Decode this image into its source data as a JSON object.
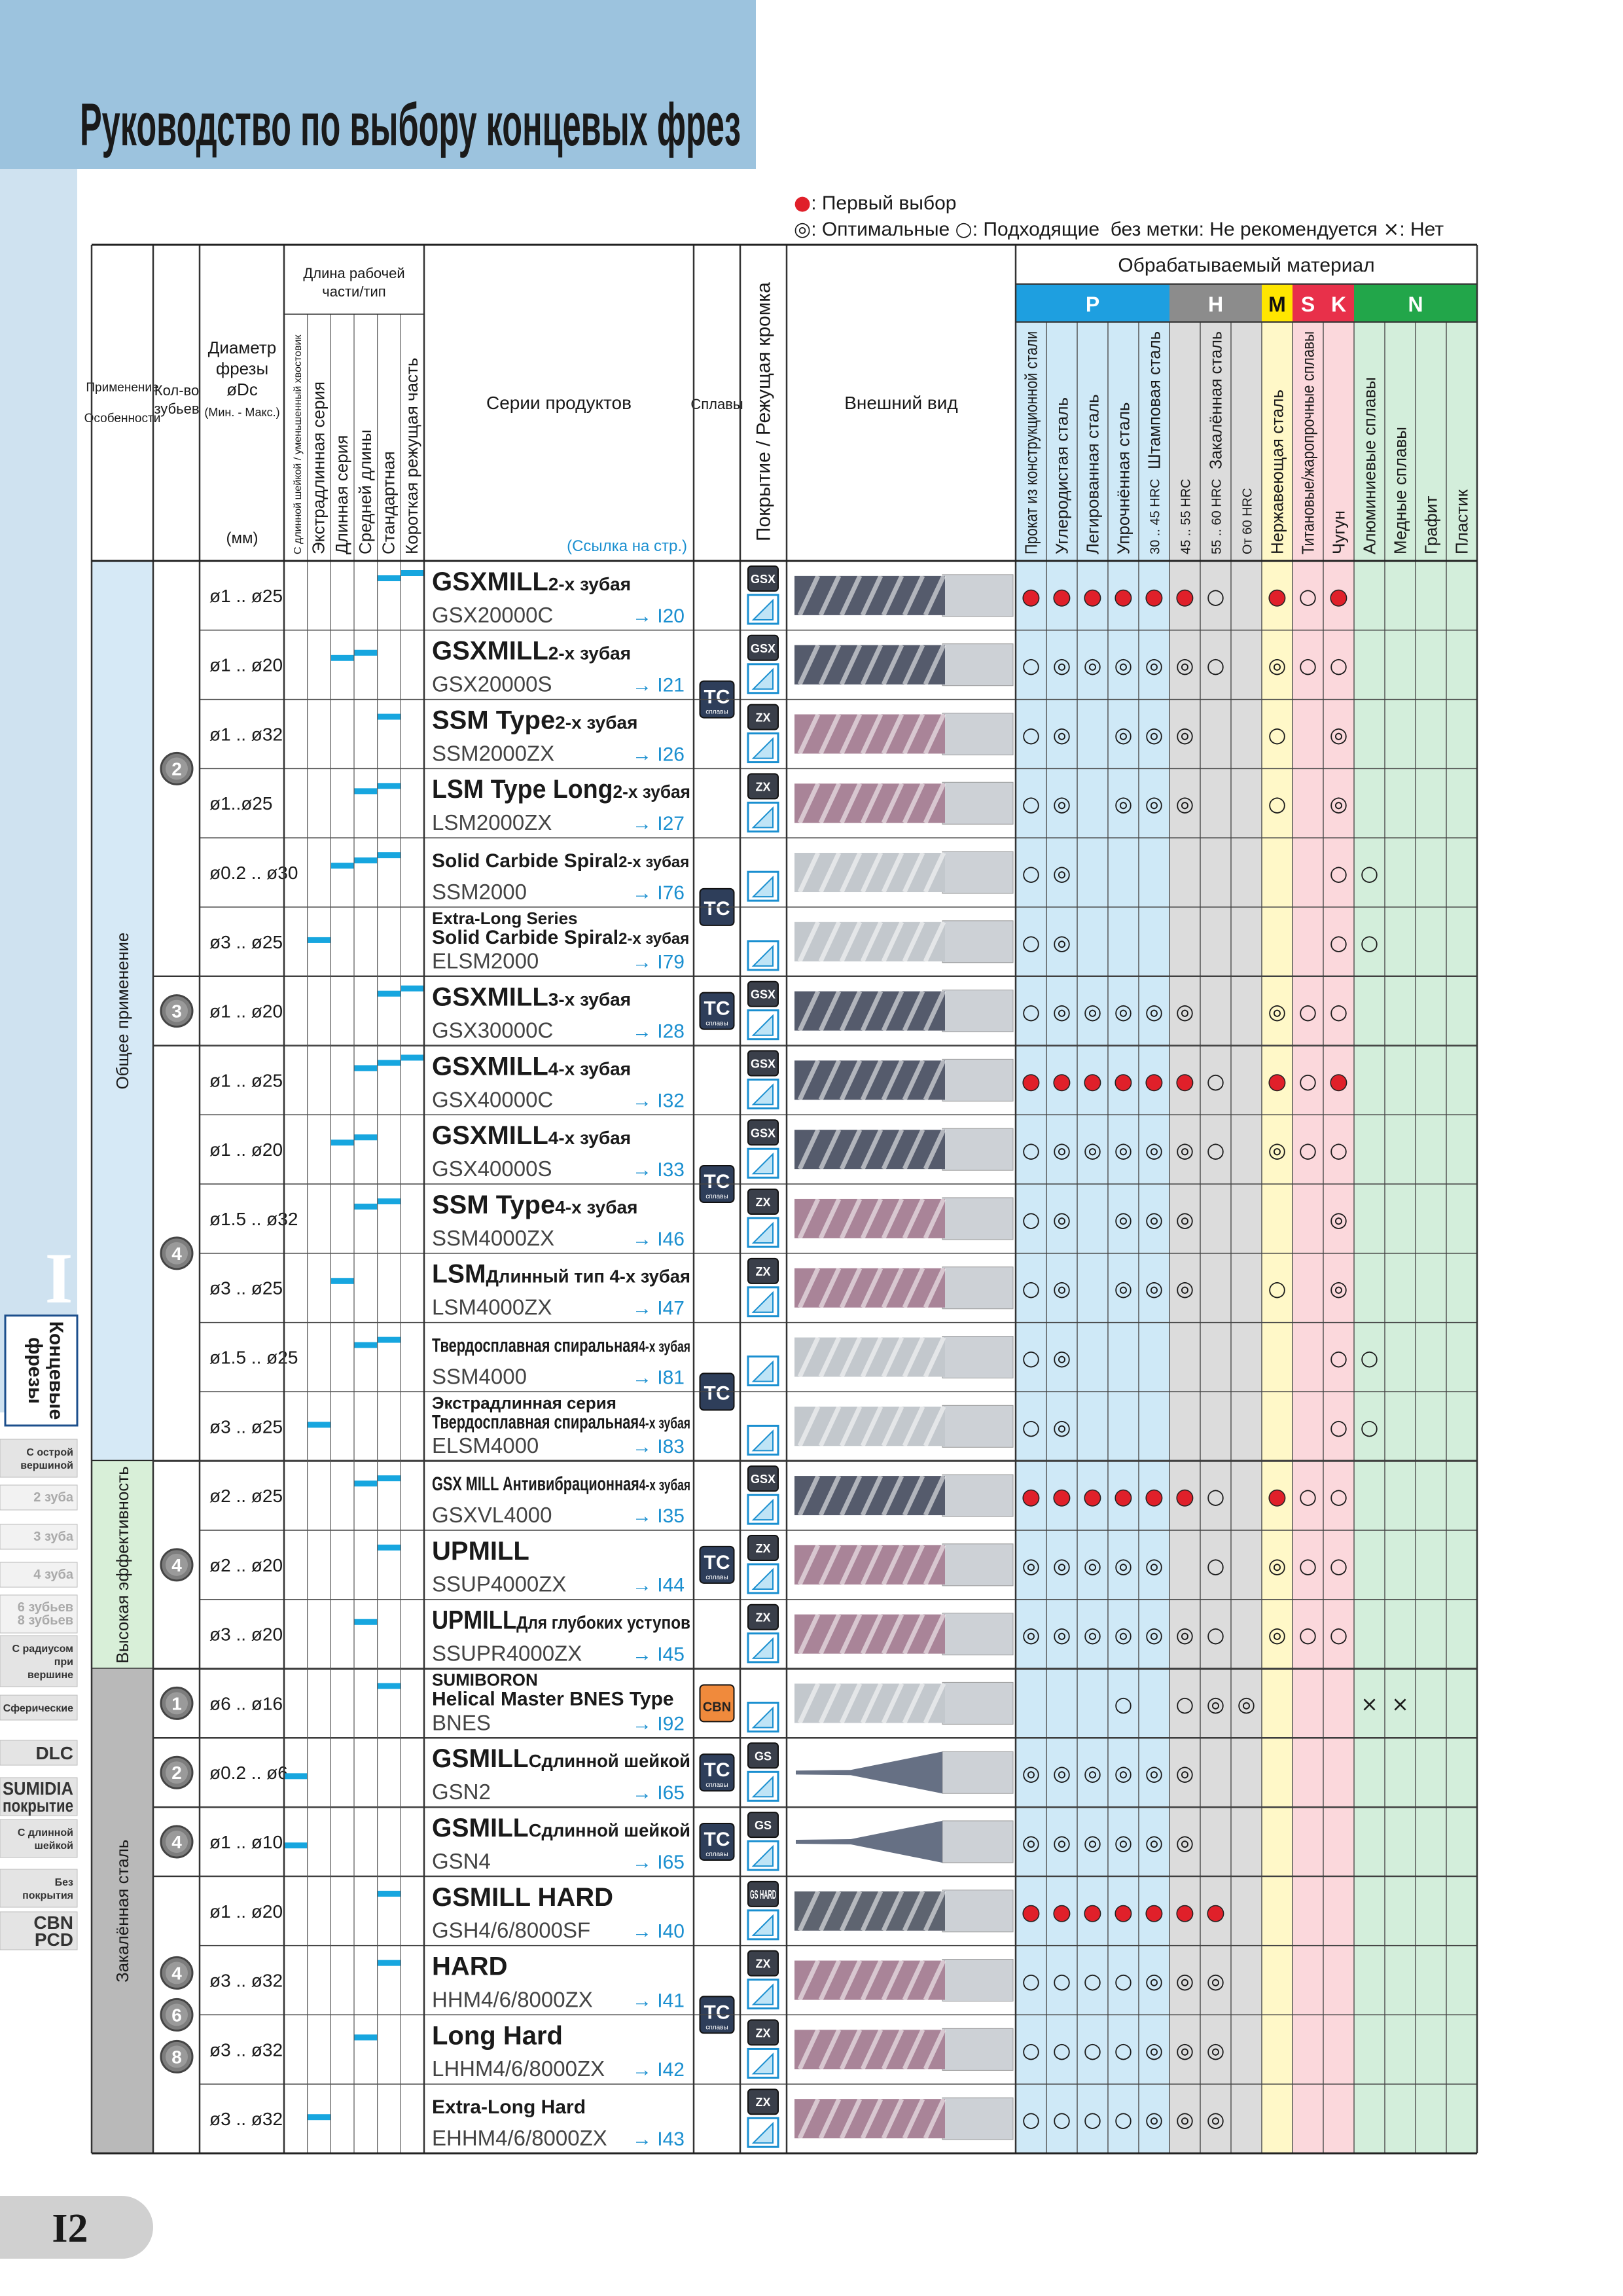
{
  "header": {
    "title": "Руководство по выбору концевых фрез"
  },
  "legend": [
    [
      {
        "symbol": "●",
        "text": ": Первый выбор"
      }
    ],
    [
      {
        "symbol": "◎",
        "text": ": Оптимальные "
      },
      {
        "symbol": "○",
        "text": ": Подходящие  без метки: Не рекомендуется "
      },
      {
        "symbol": "×",
        "text": ": Нет"
      }
    ]
  ],
  "table": {
    "head": {
      "application": "Применение",
      "features": "Особенности",
      "teeth": [
        "Кол-во",
        "зубьев"
      ],
      "diameter": [
        "Диаметр",
        "фрезы",
        "øDc",
        "(Мин. - Макс.)"
      ],
      "units": "(мм)",
      "length": [
        "Длина рабочей",
        "части/тип"
      ],
      "length_columns": [
        "С длинной шейкой / уменьшенный хвостовик",
        "Экстрадлинная серия",
        "Длинная серия",
        "Средней длины",
        "Стандартная",
        "Короткая режущая часть"
      ],
      "series": "Серии продуктов",
      "reference": "(Ссылка на стр.)",
      "alloys": "Сплавы",
      "coating": "Покрытие / Режущая кромка",
      "appearance": "Внешний вид",
      "materials": "Обрабатываемый материал"
    },
    "material_groups": [
      {
        "label": "P",
        "color": "#1e9fe0",
        "background": "#cfe9f7",
        "columns": [
          {
            "label": "Прокат из конструкционной стали"
          },
          {
            "label": "Углеродистая сталь"
          },
          {
            "label": "Легированная сталь"
          },
          {
            "label": "Упрочнённая сталь"
          },
          {
            "label": "Штамповая сталь",
            "hrc": "30 .. 45 HRC"
          }
        ]
      },
      {
        "label": "H",
        "color": "#8c8c8c",
        "background": "#dcdcdc",
        "caption": "Закалённая сталь",
        "columns": [
          {
            "hrc": "45 .. 55 HRC"
          },
          {
            "hrc": "55 .. 60 HRC"
          },
          {
            "hrc": "От 60 HRC"
          }
        ]
      },
      {
        "label": "M",
        "color": "#ffe600",
        "background": "#fff8c8",
        "columns": [
          {
            "label": "Нержавеющая сталь"
          }
        ]
      },
      {
        "label": "S",
        "color": "#e8304a",
        "background": "#fbd8dc",
        "columns": [
          {
            "label": "Титановые/жаропрочные сплавы"
          }
        ]
      },
      {
        "label": "K",
        "color": "#e8304a",
        "background": "#fbd8dc",
        "columns": [
          {
            "label": "Чугун"
          }
        ]
      },
      {
        "label": "N",
        "color": "#22a64a",
        "background": "#d3eedb",
        "columns": [
          {
            "label": "Алюминиевые сплавы"
          },
          {
            "label": "Медные сплавы"
          },
          {
            "label": "Графит"
          },
          {
            "label": "Пластик"
          }
        ]
      }
    ],
    "applications": [
      "Общее применение",
      "Высокая эффективность",
      "Закалённая сталь"
    ],
    "teeth": [
      [
        2
      ],
      [
        3
      ],
      [
        4
      ],
      [
        4
      ],
      [
        1
      ],
      [
        2
      ],
      [
        4
      ],
      [
        4,
        6,
        8
      ]
    ],
    "alloys": [
      {
        "label": "TC",
        "sub": "сплавы"
      },
      {
        "label": "TC"
      },
      {
        "label": "TC",
        "sub": "сплавы"
      },
      {
        "label": "TC",
        "sub": "сплавы"
      },
      {
        "label": "TC"
      },
      {
        "label": "TC",
        "sub": "сплавы"
      },
      {
        "label": "CBN"
      },
      {
        "label": "TC",
        "sub": "сплавы"
      },
      {
        "label": "TC",
        "sub": "сплавы"
      },
      {
        "label": "TC",
        "sub": "сплавы"
      }
    ],
    "rows": [
      {
        "diameter": "ø1 .. ø25",
        "name": "GSXMILL",
        "sub": "2-х зубая",
        "code": "GSX20000C",
        "ref": "→ I20",
        "coating": "GSX",
        "ratings": [
          "●",
          "●",
          "●",
          "●",
          "●",
          "●",
          "○",
          null,
          "●",
          "○",
          "●",
          null,
          null,
          null,
          null
        ]
      },
      {
        "diameter": "ø1 .. ø20",
        "name": "GSXMILL",
        "sub": "2-х зубая",
        "code": "GSX20000S",
        "ref": "→ I21",
        "coating": "GSX",
        "ratings": [
          "○",
          "◎",
          "◎",
          "◎",
          "◎",
          "◎",
          "○",
          null,
          "◎",
          "○",
          "○",
          null,
          null,
          null,
          null
        ]
      },
      {
        "diameter": "ø1 .. ø32",
        "name": "SSM Type",
        "sub": "2-х зубая",
        "code": "SSM2000ZX",
        "ref": "→ I26",
        "coating": "ZX",
        "ratings": [
          "○",
          "◎",
          null,
          "◎",
          "◎",
          "◎",
          null,
          null,
          "○",
          null,
          "◎",
          null,
          null,
          null,
          null
        ]
      },
      {
        "diameter": "ø1..ø25",
        "name": "LSM Type Long",
        "sub": "2-х зубая",
        "code": "LSM2000ZX",
        "ref": "→ I27",
        "coating": "ZX",
        "ratings": [
          "○",
          "◎",
          null,
          "◎",
          "◎",
          "◎",
          null,
          null,
          "○",
          null,
          "◎",
          null,
          null,
          null,
          null
        ]
      },
      {
        "diameter": "ø0.2 .. ø30",
        "name": "Solid Carbide Spiral",
        "sub": "2-х зубая",
        "code": "SSM2000",
        "ref": "→ I76",
        "coating": null,
        "ratings": [
          "○",
          "◎",
          null,
          null,
          null,
          null,
          null,
          null,
          null,
          null,
          "○",
          "○",
          null,
          null,
          null
        ]
      },
      {
        "diameter": "ø3 .. ø25",
        "pre": "Extra-Long Series",
        "name": "Solid Carbide Spiral",
        "sub": "2-х зубая",
        "code": "ELSM2000",
        "ref": "→ I79",
        "coating": null,
        "ratings": [
          "○",
          "◎",
          null,
          null,
          null,
          null,
          null,
          null,
          null,
          null,
          "○",
          "○",
          null,
          null,
          null
        ]
      },
      {
        "diameter": "ø1 .. ø20",
        "name": "GSXMILL",
        "sub": "3-х зубая",
        "code": "GSX30000C",
        "ref": "→ I28",
        "coating": "GSX",
        "ratings": [
          "○",
          "◎",
          "◎",
          "◎",
          "◎",
          "◎",
          null,
          null,
          "◎",
          "○",
          "○",
          null,
          null,
          null,
          null
        ]
      },
      {
        "diameter": "ø1 .. ø25",
        "name": "GSXMILL",
        "sub": "4-х зубая",
        "code": "GSX40000C",
        "ref": "→ I32",
        "coating": "GSX",
        "ratings": [
          "●",
          "●",
          "●",
          "●",
          "●",
          "●",
          "○",
          null,
          "●",
          "○",
          "●",
          null,
          null,
          null,
          null
        ]
      },
      {
        "diameter": "ø1 .. ø20",
        "name": "GSXMILL",
        "sub": "4-х зубая",
        "code": "GSX40000S",
        "ref": "→ I33",
        "coating": "GSX",
        "ratings": [
          "○",
          "◎",
          "◎",
          "◎",
          "◎",
          "◎",
          "○",
          null,
          "◎",
          "○",
          "○",
          null,
          null,
          null,
          null
        ]
      },
      {
        "diameter": "ø1.5 .. ø32",
        "name": "SSM Type",
        "sub": "4-х зубая",
        "code": "SSM4000ZX",
        "ref": "→ I46",
        "coating": "ZX",
        "ratings": [
          "○",
          "◎",
          null,
          "◎",
          "◎",
          "◎",
          null,
          null,
          null,
          null,
          "◎",
          null,
          null,
          null,
          null
        ]
      },
      {
        "diameter": "ø3 .. ø25",
        "name": "LSM",
        "sub": "Длинный тип 4-х зубая",
        "code": "LSM4000ZX",
        "ref": "→ I47",
        "coating": "ZX",
        "ratings": [
          "○",
          "◎",
          null,
          "◎",
          "◎",
          "◎",
          null,
          null,
          "○",
          null,
          "◎",
          null,
          null,
          null,
          null
        ]
      },
      {
        "diameter": "ø1.5 .. ø25",
        "name": "Твердосплавная спиральная",
        "sub": "4-х зубая",
        "code": "SSM4000",
        "ref": "→ I81",
        "coating": null,
        "ratings": [
          "○",
          "◎",
          null,
          null,
          null,
          null,
          null,
          null,
          null,
          null,
          "○",
          "○",
          null,
          null,
          null
        ]
      },
      {
        "diameter": "ø3 .. ø25",
        "pre": "Экстрадлинная серия",
        "name": "Твердосплавная спиральная",
        "sub": "4-х зубая",
        "code": "ELSM4000",
        "ref": "→ I83",
        "coating": null,
        "ratings": [
          "○",
          "◎",
          null,
          null,
          null,
          null,
          null,
          null,
          null,
          null,
          "○",
          "○",
          null,
          null,
          null
        ]
      },
      {
        "diameter": "ø2 .. ø25",
        "name": "GSX MILL Антивибрационная",
        "sub": "4-х зубая",
        "code": "GSXVL4000",
        "ref": "→ I35",
        "coating": "GSX",
        "ratings": [
          "●",
          "●",
          "●",
          "●",
          "●",
          "●",
          "○",
          null,
          "●",
          "○",
          "○",
          null,
          null,
          null,
          null
        ]
      },
      {
        "diameter": "ø2 .. ø20",
        "name": "UPMILL",
        "code": "SSUP4000ZX",
        "ref": "→ I44",
        "coating": "ZX",
        "ratings": [
          "◎",
          "◎",
          "◎",
          "◎",
          "◎",
          null,
          "○",
          null,
          "◎",
          "○",
          "○",
          null,
          null,
          null,
          null
        ]
      },
      {
        "diameter": "ø3 .. ø20",
        "name": "UPMILL",
        "sub": "Для глубоких уступов",
        "code": "SSUPR4000ZX",
        "ref": "→ I45",
        "coating": "ZX",
        "ratings": [
          "◎",
          "◎",
          "◎",
          "◎",
          "◎",
          "◎",
          "○",
          null,
          "◎",
          "○",
          "○",
          null,
          null,
          null,
          null
        ]
      },
      {
        "diameter": "ø6 .. ø16",
        "pre": "SUMIBORON",
        "name": "Helical Master BNES Type",
        "code": "BNES",
        "ref": "→ I92",
        "coating": null,
        "ratings": [
          null,
          null,
          null,
          "○",
          null,
          "○",
          "◎",
          "◎",
          null,
          null,
          null,
          "×",
          "×",
          null,
          null
        ]
      },
      {
        "diameter": "ø0.2 .. ø6",
        "name": "GSMILL",
        "sub": "Сдлинной шейкой",
        "code": "GSN2",
        "ref": "→ I65",
        "coating": "GS",
        "ratings": [
          "◎",
          "◎",
          "◎",
          "◎",
          "◎",
          "◎",
          null,
          null,
          null,
          null,
          null,
          null,
          null,
          null,
          null
        ]
      },
      {
        "diameter": "ø1 .. ø10",
        "name": "GSMILL",
        "sub": "Сдлинной шейкой",
        "code": "GSN4",
        "ref": "→ I65",
        "coating": "GS",
        "ratings": [
          "◎",
          "◎",
          "◎",
          "◎",
          "◎",
          "◎",
          null,
          null,
          null,
          null,
          null,
          null,
          null,
          null,
          null
        ]
      },
      {
        "diameter": "ø1 .. ø20",
        "name": "GSMILL HARD",
        "code": "GSH4/6/8000SF",
        "ref": "→ I40",
        "coating": "GS HARD",
        "ratings": [
          "●",
          "●",
          "●",
          "●",
          "●",
          "●",
          "●",
          null,
          null,
          null,
          null,
          null,
          null,
          null,
          null
        ]
      },
      {
        "diameter": "ø3 .. ø32",
        "name": "HARD",
        "code": "HHM4/6/8000ZX",
        "ref": "→ I41",
        "coating": "ZX",
        "ratings": [
          "○",
          "○",
          "○",
          "○",
          "◎",
          "◎",
          "◎",
          null,
          null,
          null,
          null,
          null,
          null,
          null,
          null
        ]
      },
      {
        "diameter": "ø3 .. ø32",
        "name": "Long Hard",
        "code": "LHHM4/6/8000ZX",
        "ref": "→ I42",
        "coating": "ZX",
        "ratings": [
          "○",
          "○",
          "○",
          "○",
          "◎",
          "◎",
          "◎",
          null,
          null,
          null,
          null,
          null,
          null,
          null,
          null
        ]
      },
      {
        "diameter": "ø3 .. ø32",
        "name": "Extra-Long Hard",
        "code": "EHHM4/6/8000ZX",
        "ref": "→ I43",
        "coating": "ZX",
        "ratings": [
          "○",
          "○",
          "○",
          "○",
          "◎",
          "◎",
          "◎",
          null,
          null,
          null,
          null,
          null,
          null,
          null,
          null
        ]
      }
    ]
  },
  "sidebar": {
    "section": "I",
    "section_title": [
      "Концевые",
      "фрезы"
    ],
    "items": [
      [
        "С острой",
        "вершиной"
      ],
      [
        "2 зуба"
      ],
      [
        "3 зуба"
      ],
      [
        "4 зуба"
      ],
      [
        "6 зубьев",
        "8 зубьев"
      ],
      [
        "С радиусом",
        "при",
        "вершине"
      ],
      [
        "Сферические"
      ],
      [
        "DLC"
      ],
      [
        "SUMIDIA",
        "покрытие"
      ],
      [
        "С длинной",
        "шейкой"
      ],
      [
        "Без",
        "покрытия"
      ],
      [
        "CBN",
        "PCD"
      ]
    ]
  },
  "footer": {
    "page": "I2"
  }
}
